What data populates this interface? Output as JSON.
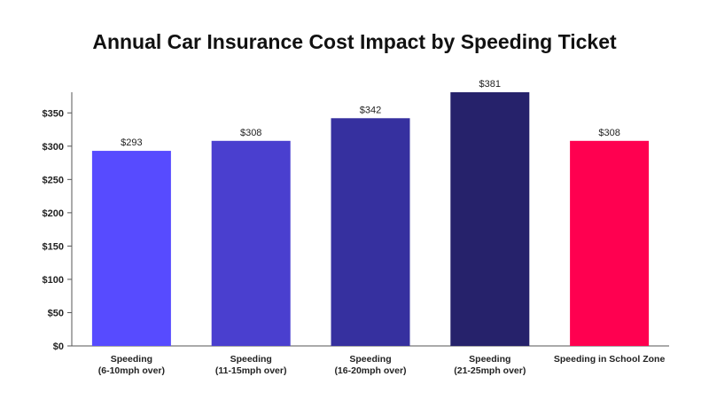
{
  "chart_data": {
    "type": "bar",
    "title": "Annual Car Insurance Cost Impact by Speeding Ticket",
    "xlabel": "",
    "ylabel": "",
    "categories": [
      [
        "Speeding",
        "(6-10mph over)"
      ],
      [
        "Speeding",
        "(11-15mph over)"
      ],
      [
        "Speeding",
        "(16-20mph over)"
      ],
      [
        "Speeding",
        "(21-25mph over)"
      ],
      [
        "Speeding in School Zone"
      ]
    ],
    "values": [
      293,
      308,
      342,
      381,
      308
    ],
    "data_labels": [
      "$293",
      "$308",
      "$342",
      "$381",
      "$308"
    ],
    "bar_colors": [
      "#574bff",
      "#4a3fcf",
      "#36309f",
      "#26226b",
      "#ff0050"
    ],
    "ylim": [
      0,
      381
    ],
    "yticks": [
      0,
      50,
      100,
      150,
      200,
      250,
      300,
      350
    ],
    "ytick_labels": [
      "$0",
      "$50",
      "$100",
      "$150",
      "$200",
      "$250",
      "$300",
      "$350"
    ],
    "grid": false,
    "legend": "none",
    "axis_color": "#555555"
  }
}
